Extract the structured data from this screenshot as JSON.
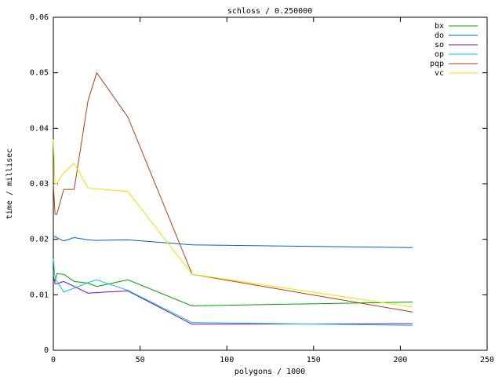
{
  "chart_data": {
    "type": "line",
    "title": "schloss / 0.250000",
    "x_label": "polygons / 1000",
    "y_label": "time / millisec",
    "x": [
      0,
      1,
      2,
      6,
      12,
      20,
      25,
      43,
      80,
      207
    ],
    "series": [
      {
        "name": "bx",
        "color": "#00a000",
        "values": [
          0.013,
          0.0125,
          0.0138,
          0.0137,
          0.0124,
          0.0121,
          0.0115,
          0.0127,
          0.008,
          0.0087
        ]
      },
      {
        "name": "do",
        "color": "#0060d0",
        "values": [
          0.0205,
          0.0205,
          0.0203,
          0.0197,
          0.0203,
          0.0199,
          0.0198,
          0.0199,
          0.019,
          0.0185
        ]
      },
      {
        "name": "so",
        "color": "#8000c0",
        "values": [
          0.0135,
          0.012,
          0.012,
          0.0124,
          0.0115,
          0.0103,
          0.0104,
          0.0107,
          0.0047,
          0.0048
        ]
      },
      {
        "name": "op",
        "color": "#00c8c8",
        "values": [
          0.0165,
          0.013,
          0.0125,
          0.0105,
          0.0112,
          0.0122,
          0.0127,
          0.0108,
          0.005,
          0.0045
        ]
      },
      {
        "name": "pqp",
        "color": "#b04010",
        "values": [
          0.03,
          0.0245,
          0.0245,
          0.029,
          0.029,
          0.045,
          0.05,
          0.042,
          0.0137,
          0.0069
        ]
      },
      {
        "name": "vc",
        "color": "#f0e000",
        "values": [
          0.038,
          0.03,
          0.03,
          0.032,
          0.0337,
          0.0292,
          0.0291,
          0.0286,
          0.0137,
          0.0078
        ]
      }
    ],
    "xlim": [
      0,
      250
    ],
    "xticks": [
      0,
      50,
      100,
      150,
      200,
      250
    ],
    "ylim": [
      0,
      0.06
    ],
    "yticks": [
      0,
      0.01,
      0.02,
      0.03,
      0.04,
      0.05,
      0.06
    ],
    "legend": "top-right"
  }
}
